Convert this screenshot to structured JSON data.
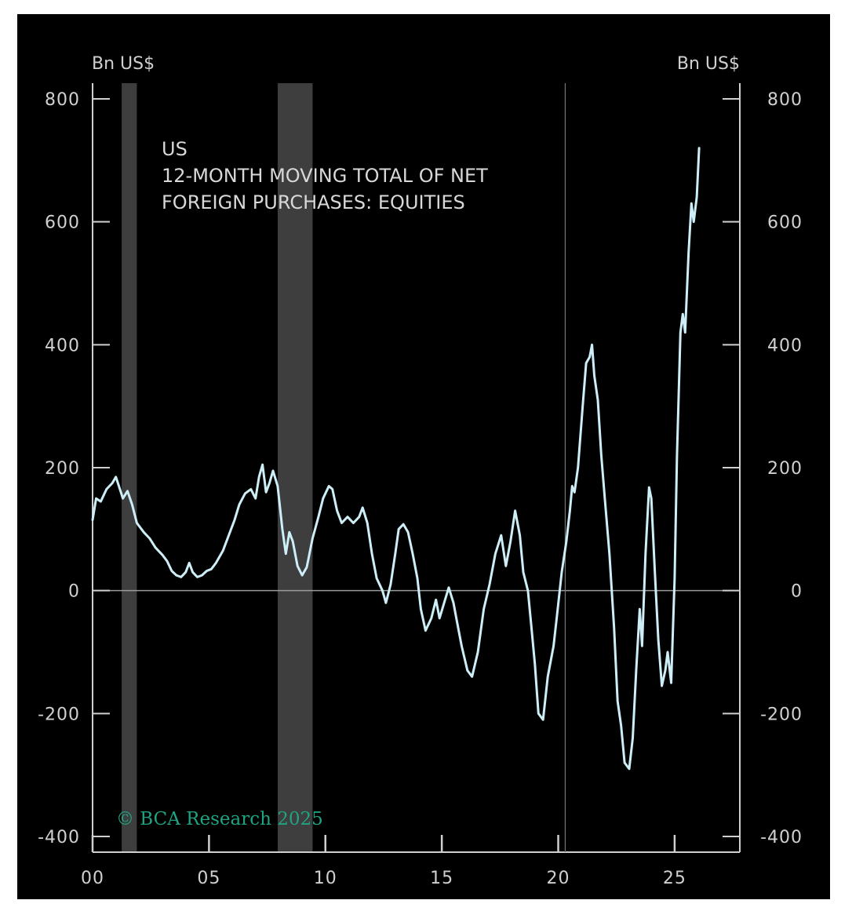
{
  "chart_data": {
    "type": "line",
    "title_lines": [
      "US",
      "12-MONTH MOVING TOTAL OF NET",
      "FOREIGN PURCHASES: EQUITIES"
    ],
    "ylabel_left": "Bn US$",
    "ylabel_right": "Bn US$",
    "ylim": [
      -400,
      800
    ],
    "yticks": [
      "800",
      "600",
      "400",
      "200",
      "0",
      "-200",
      "-400"
    ],
    "ytick_values": [
      800,
      600,
      400,
      200,
      0,
      -200,
      -400
    ],
    "xlim": [
      2000,
      2027.8
    ],
    "xticks": [
      "00",
      "05",
      "10",
      "15",
      "20",
      "25"
    ],
    "xtick_values": [
      2000,
      2005,
      2010,
      2015,
      2020,
      2025
    ],
    "recession_shading": [
      [
        2001.25,
        2001.9
      ],
      [
        2007.95,
        2009.45
      ]
    ],
    "reference_line_x": 2020.3,
    "credit": "© BCA Research 2025",
    "colors": {
      "background": "#000000",
      "line": "#cdeef7",
      "shading": "#3e3e3e",
      "axis": "#cfcfcf",
      "credit": "#1fa383"
    },
    "series": [
      {
        "values": [
          [
            2000.0,
            115
          ],
          [
            2000.15,
            150
          ],
          [
            2000.35,
            145
          ],
          [
            2000.6,
            165
          ],
          [
            2000.85,
            175
          ],
          [
            2001.0,
            185
          ],
          [
            2001.15,
            168
          ],
          [
            2001.3,
            150
          ],
          [
            2001.5,
            162
          ],
          [
            2001.7,
            140
          ],
          [
            2001.9,
            110
          ],
          [
            2002.2,
            95
          ],
          [
            2002.45,
            85
          ],
          [
            2002.7,
            70
          ],
          [
            2003.0,
            58
          ],
          [
            2003.2,
            48
          ],
          [
            2003.4,
            32
          ],
          [
            2003.6,
            25
          ],
          [
            2003.8,
            22
          ],
          [
            2004.0,
            30
          ],
          [
            2004.15,
            45
          ],
          [
            2004.3,
            30
          ],
          [
            2004.5,
            22
          ],
          [
            2004.7,
            25
          ],
          [
            2004.9,
            32
          ],
          [
            2005.1,
            35
          ],
          [
            2005.3,
            45
          ],
          [
            2005.6,
            65
          ],
          [
            2005.85,
            90
          ],
          [
            2006.1,
            115
          ],
          [
            2006.3,
            140
          ],
          [
            2006.55,
            158
          ],
          [
            2006.8,
            165
          ],
          [
            2007.0,
            150
          ],
          [
            2007.15,
            185
          ],
          [
            2007.3,
            205
          ],
          [
            2007.45,
            160
          ],
          [
            2007.6,
            175
          ],
          [
            2007.75,
            195
          ],
          [
            2007.95,
            170
          ],
          [
            2008.15,
            100
          ],
          [
            2008.3,
            60
          ],
          [
            2008.45,
            95
          ],
          [
            2008.6,
            80
          ],
          [
            2008.8,
            40
          ],
          [
            2009.0,
            25
          ],
          [
            2009.2,
            38
          ],
          [
            2009.45,
            85
          ],
          [
            2009.7,
            120
          ],
          [
            2009.9,
            150
          ],
          [
            2010.15,
            170
          ],
          [
            2010.3,
            165
          ],
          [
            2010.5,
            130
          ],
          [
            2010.7,
            110
          ],
          [
            2010.95,
            120
          ],
          [
            2011.2,
            110
          ],
          [
            2011.45,
            120
          ],
          [
            2011.6,
            135
          ],
          [
            2011.8,
            110
          ],
          [
            2012.0,
            60
          ],
          [
            2012.2,
            20
          ],
          [
            2012.45,
            0
          ],
          [
            2012.6,
            -20
          ],
          [
            2012.8,
            10
          ],
          [
            2013.0,
            60
          ],
          [
            2013.15,
            100
          ],
          [
            2013.35,
            108
          ],
          [
            2013.55,
            95
          ],
          [
            2013.75,
            60
          ],
          [
            2013.95,
            20
          ],
          [
            2014.1,
            -30
          ],
          [
            2014.3,
            -65
          ],
          [
            2014.55,
            -45
          ],
          [
            2014.75,
            -15
          ],
          [
            2014.9,
            -45
          ],
          [
            2015.1,
            -20
          ],
          [
            2015.3,
            5
          ],
          [
            2015.5,
            -20
          ],
          [
            2015.65,
            -50
          ],
          [
            2015.85,
            -90
          ],
          [
            2016.1,
            -130
          ],
          [
            2016.3,
            -140
          ],
          [
            2016.55,
            -100
          ],
          [
            2016.8,
            -30
          ],
          [
            2017.05,
            10
          ],
          [
            2017.3,
            60
          ],
          [
            2017.55,
            90
          ],
          [
            2017.75,
            40
          ],
          [
            2017.95,
            80
          ],
          [
            2018.15,
            130
          ],
          [
            2018.35,
            90
          ],
          [
            2018.5,
            30
          ],
          [
            2018.7,
            0
          ],
          [
            2018.85,
            -60
          ],
          [
            2019.0,
            -120
          ],
          [
            2019.15,
            -200
          ],
          [
            2019.35,
            -210
          ],
          [
            2019.55,
            -140
          ],
          [
            2019.8,
            -90
          ],
          [
            2019.95,
            -40
          ],
          [
            2020.15,
            30
          ],
          [
            2020.35,
            80
          ],
          [
            2020.5,
            130
          ],
          [
            2020.6,
            170
          ],
          [
            2020.7,
            160
          ],
          [
            2020.85,
            200
          ],
          [
            2021.05,
            300
          ],
          [
            2021.2,
            370
          ],
          [
            2021.35,
            380
          ],
          [
            2021.45,
            400
          ],
          [
            2021.55,
            350
          ],
          [
            2021.7,
            310
          ],
          [
            2021.85,
            220
          ],
          [
            2022.0,
            150
          ],
          [
            2022.2,
            60
          ],
          [
            2022.4,
            -60
          ],
          [
            2022.55,
            -180
          ],
          [
            2022.7,
            -220
          ],
          [
            2022.85,
            -280
          ],
          [
            2023.05,
            -290
          ],
          [
            2023.2,
            -240
          ],
          [
            2023.35,
            -130
          ],
          [
            2023.5,
            -30
          ],
          [
            2023.6,
            -90
          ],
          [
            2023.75,
            60
          ],
          [
            2023.9,
            168
          ],
          [
            2024.0,
            150
          ],
          [
            2024.15,
            30
          ],
          [
            2024.3,
            -80
          ],
          [
            2024.45,
            -155
          ],
          [
            2024.6,
            -130
          ],
          [
            2024.7,
            -100
          ],
          [
            2024.85,
            -150
          ],
          [
            2025.0,
            20
          ],
          [
            2025.1,
            220
          ],
          [
            2025.25,
            420
          ],
          [
            2025.35,
            450
          ],
          [
            2025.45,
            420
          ],
          [
            2025.6,
            550
          ],
          [
            2025.72,
            630
          ],
          [
            2025.82,
            600
          ],
          [
            2025.95,
            640
          ],
          [
            2026.05,
            720
          ]
        ]
      }
    ]
  }
}
